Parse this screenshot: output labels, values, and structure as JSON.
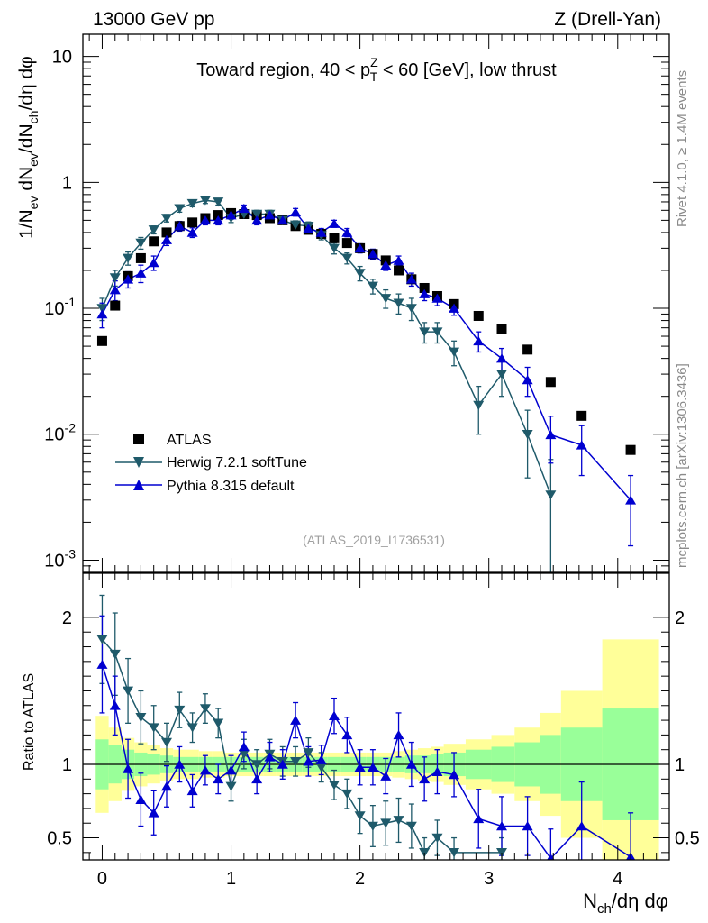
{
  "header": {
    "left": "13000 GeV pp",
    "right": "Z (Drell-Yan)"
  },
  "side_labels": {
    "rivet": "Rivet 4.1.0, ≥ 1.4M events",
    "url": "mcplots.cern.ch [arXiv:1306.3436]"
  },
  "colors": {
    "data": "#000000",
    "herwig": "#1f5a6a",
    "pythia": "#0000d0",
    "band_inner": "#99ff99",
    "band_outer": "#ffff99"
  },
  "chart_data": [
    {
      "type": "scatter",
      "title": "Toward region, 40 < p_T^Z < 60 [GeV], low thrust",
      "title_parts": {
        "pre": "Toward region, 40 < p",
        "sup": "Z",
        "sub": "T",
        "post": " < 60 [GeV], low thrust"
      },
      "ylabel": "1/N_ev dN_ev/dN_ch/dη dφ",
      "yscale": "log",
      "ylim": [
        0.0008,
        15
      ],
      "xlim": [
        -0.15,
        4.4
      ],
      "ytick_labels": {
        "mantissa": "10",
        "exponents": [
          "-3",
          "-2",
          "-1"
        ],
        "plain": [
          "1",
          "10"
        ]
      },
      "watermark": "(ATLAS_2019_I1736531)",
      "legend": {
        "position": "lower-left",
        "entries": [
          "ATLAS",
          "Herwig 7.2.1 softTune",
          "Pythia 8.315 default"
        ]
      },
      "series": [
        {
          "name": "ATLAS",
          "marker": "square",
          "x": [
            0.0,
            0.1,
            0.2,
            0.3,
            0.4,
            0.5,
            0.6,
            0.7,
            0.8,
            0.9,
            1.0,
            1.1,
            1.2,
            1.3,
            1.4,
            1.5,
            1.6,
            1.7,
            1.8,
            1.9,
            2.0,
            2.1,
            2.2,
            2.3,
            2.4,
            2.5,
            2.6,
            2.73,
            2.92,
            3.1,
            3.3,
            3.48,
            3.72,
            4.1
          ],
          "y": [
            0.055,
            0.105,
            0.18,
            0.25,
            0.34,
            0.4,
            0.45,
            0.48,
            0.52,
            0.55,
            0.57,
            0.56,
            0.55,
            0.52,
            0.5,
            0.45,
            0.42,
            0.39,
            0.36,
            0.33,
            0.3,
            0.27,
            0.24,
            0.2,
            0.17,
            0.145,
            0.125,
            0.108,
            0.087,
            0.068,
            0.047,
            0.026,
            0.014,
            0.0075
          ]
        },
        {
          "name": "Herwig 7.2.1 softTune",
          "marker": "triangle-down",
          "x": [
            0.0,
            0.1,
            0.2,
            0.3,
            0.4,
            0.5,
            0.6,
            0.7,
            0.8,
            0.9,
            1.0,
            1.1,
            1.2,
            1.3,
            1.4,
            1.5,
            1.6,
            1.7,
            1.8,
            1.9,
            2.0,
            2.1,
            2.2,
            2.3,
            2.4,
            2.5,
            2.6,
            2.73,
            2.92,
            3.1,
            3.3,
            3.48
          ],
          "y": [
            0.1,
            0.175,
            0.25,
            0.33,
            0.42,
            0.52,
            0.62,
            0.68,
            0.72,
            0.7,
            0.52,
            0.56,
            0.56,
            0.56,
            0.5,
            0.46,
            0.45,
            0.38,
            0.3,
            0.25,
            0.19,
            0.15,
            0.12,
            0.11,
            0.1,
            0.065,
            0.065,
            0.045,
            0.017,
            0.03,
            0.01,
            0.0033
          ],
          "err": [
            0.02,
            0.025,
            0.03,
            0.035,
            0.03,
            0.035,
            0.04,
            0.04,
            0.04,
            0.04,
            0.04,
            0.04,
            0.04,
            0.04,
            0.035,
            0.035,
            0.035,
            0.03,
            0.03,
            0.025,
            0.025,
            0.02,
            0.02,
            0.02,
            0.02,
            0.012,
            0.012,
            0.01,
            0.007,
            0.01,
            0.0055,
            0.003
          ]
        },
        {
          "name": "Pythia 8.315 default",
          "marker": "triangle-up",
          "x": [
            0.0,
            0.1,
            0.2,
            0.3,
            0.4,
            0.5,
            0.6,
            0.7,
            0.8,
            0.9,
            1.0,
            1.1,
            1.2,
            1.3,
            1.4,
            1.5,
            1.6,
            1.7,
            1.8,
            1.9,
            2.0,
            2.1,
            2.2,
            2.3,
            2.4,
            2.5,
            2.6,
            2.73,
            2.92,
            3.1,
            3.3,
            3.48,
            3.72,
            4.1
          ],
          "y": [
            0.09,
            0.14,
            0.17,
            0.19,
            0.23,
            0.35,
            0.45,
            0.4,
            0.5,
            0.5,
            0.55,
            0.62,
            0.5,
            0.55,
            0.5,
            0.58,
            0.43,
            0.4,
            0.47,
            0.4,
            0.3,
            0.27,
            0.22,
            0.24,
            0.17,
            0.13,
            0.12,
            0.1,
            0.055,
            0.04,
            0.027,
            0.0099,
            0.0082,
            0.003
          ],
          "err": [
            0.02,
            0.025,
            0.025,
            0.03,
            0.03,
            0.035,
            0.04,
            0.035,
            0.04,
            0.04,
            0.04,
            0.04,
            0.04,
            0.04,
            0.035,
            0.04,
            0.035,
            0.03,
            0.03,
            0.03,
            0.025,
            0.025,
            0.02,
            0.02,
            0.02,
            0.015,
            0.015,
            0.012,
            0.01,
            0.008,
            0.007,
            0.004,
            0.0035,
            0.0017
          ]
        }
      ]
    },
    {
      "type": "scatter",
      "title": "",
      "ylabel": "Ratio to ATLAS",
      "xlabel": "N_ch/dη dφ",
      "xlabel_parts": {
        "pre": "N",
        "sub": "ch",
        "post": "/dη dφ"
      },
      "ylim": [
        0.35,
        2.3
      ],
      "xlim": [
        -0.15,
        4.4
      ],
      "yticks": [
        0.5,
        1,
        2
      ],
      "ytick_labels": [
        "0.5",
        "1",
        "2"
      ],
      "xticks": [
        0,
        1,
        2,
        3,
        4
      ],
      "xtick_labels": [
        "0",
        "1",
        "2",
        "3",
        "4"
      ],
      "reference_line": 1,
      "bands": {
        "edges": [
          -0.05,
          0.05,
          0.15,
          0.25,
          0.35,
          0.45,
          0.55,
          0.65,
          0.75,
          0.85,
          0.95,
          1.05,
          1.15,
          1.25,
          1.35,
          1.45,
          1.55,
          1.65,
          1.75,
          1.85,
          1.95,
          2.05,
          2.15,
          2.25,
          2.35,
          2.45,
          2.55,
          2.65,
          2.82,
          3.02,
          3.2,
          3.4,
          3.56,
          3.88,
          4.32
        ],
        "inner": [
          0.17,
          0.13,
          0.1,
          0.08,
          0.07,
          0.06,
          0.05,
          0.05,
          0.05,
          0.05,
          0.05,
          0.05,
          0.05,
          0.05,
          0.05,
          0.05,
          0.05,
          0.05,
          0.05,
          0.05,
          0.05,
          0.05,
          0.05,
          0.05,
          0.06,
          0.06,
          0.07,
          0.08,
          0.1,
          0.12,
          0.15,
          0.2,
          0.25,
          0.38
        ],
        "outer": [
          0.33,
          0.25,
          0.18,
          0.15,
          0.13,
          0.11,
          0.1,
          0.1,
          0.09,
          0.09,
          0.08,
          0.08,
          0.08,
          0.08,
          0.08,
          0.08,
          0.08,
          0.08,
          0.08,
          0.08,
          0.08,
          0.08,
          0.08,
          0.09,
          0.1,
          0.11,
          0.12,
          0.14,
          0.17,
          0.2,
          0.25,
          0.35,
          0.5,
          0.85
        ]
      },
      "series": [
        {
          "name": "Herwig 7.2.1 softTune",
          "x": [
            0.0,
            0.1,
            0.2,
            0.3,
            0.4,
            0.5,
            0.6,
            0.7,
            0.8,
            0.9,
            1.0,
            1.1,
            1.2,
            1.3,
            1.4,
            1.5,
            1.6,
            1.7,
            1.8,
            1.9,
            2.0,
            2.1,
            2.2,
            2.3,
            2.4,
            2.5,
            2.6,
            2.73,
            3.1
          ],
          "y": [
            1.85,
            1.75,
            1.5,
            1.32,
            1.25,
            1.15,
            1.37,
            1.25,
            1.38,
            1.28,
            0.85,
            1.07,
            1.0,
            1.07,
            1.02,
            1.02,
            1.08,
            0.98,
            0.86,
            0.8,
            0.65,
            0.58,
            0.6,
            0.62,
            0.58,
            0.4,
            0.5,
            0.4,
            0.4
          ],
          "err": [
            0.3,
            0.28,
            0.22,
            0.18,
            0.15,
            0.13,
            0.12,
            0.1,
            0.1,
            0.1,
            0.1,
            0.1,
            0.1,
            0.1,
            0.1,
            0.1,
            0.1,
            0.1,
            0.1,
            0.1,
            0.12,
            0.14,
            0.15,
            0.15,
            0.15,
            0.1,
            0.12,
            0.1,
            0.1
          ]
        },
        {
          "name": "Pythia 8.315 default",
          "x": [
            0.0,
            0.1,
            0.2,
            0.3,
            0.4,
            0.5,
            0.6,
            0.7,
            0.8,
            0.9,
            1.0,
            1.1,
            1.2,
            1.3,
            1.4,
            1.5,
            1.6,
            1.7,
            1.8,
            1.9,
            2.0,
            2.1,
            2.2,
            2.3,
            2.4,
            2.5,
            2.6,
            2.73,
            2.92,
            3.1,
            3.3,
            3.48,
            3.72,
            4.1
          ],
          "y": [
            1.68,
            1.4,
            0.97,
            0.76,
            0.67,
            0.85,
            1.0,
            0.82,
            0.96,
            0.9,
            0.96,
            1.12,
            0.9,
            1.05,
            1.0,
            1.3,
            1.02,
            1.03,
            1.33,
            1.2,
            0.98,
            0.98,
            0.92,
            1.2,
            1.0,
            0.9,
            0.95,
            0.93,
            0.63,
            0.58,
            0.58,
            0.36,
            0.58,
            0.37
          ],
          "err": [
            0.33,
            0.2,
            0.2,
            0.18,
            0.15,
            0.14,
            0.12,
            0.11,
            0.1,
            0.1,
            0.1,
            0.1,
            0.1,
            0.1,
            0.1,
            0.12,
            0.1,
            0.1,
            0.12,
            0.12,
            0.12,
            0.12,
            0.12,
            0.15,
            0.15,
            0.15,
            0.15,
            0.15,
            0.2,
            0.2,
            0.2,
            0.2,
            0.3,
            0.3
          ]
        }
      ]
    }
  ]
}
